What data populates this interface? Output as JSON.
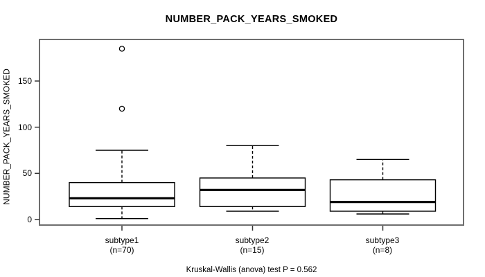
{
  "title": "NUMBER_PACK_YEARS_SMOKED",
  "colors": {
    "line": "#000000",
    "frame": "#6e6e6e",
    "background": "#ffffff",
    "text": "#000000"
  },
  "chart_data": {
    "type": "boxplot",
    "title": "NUMBER_PACK_YEARS_SMOKED",
    "ylabel": "NUMBER_PACK_YEARS_SMOKED",
    "xlabel": "",
    "ylim": [
      -6,
      195
    ],
    "yticks": [
      0,
      50,
      100,
      150
    ],
    "grid": false,
    "footnote": "Kruskal-Wallis (anova) test P = 0.562",
    "groups": [
      {
        "label": "subtype1",
        "n_label": "(n=70)",
        "n": 70,
        "whisker_low": 1,
        "q1": 14,
        "median": 23,
        "q3": 40,
        "whisker_high": 75,
        "outliers": [
          120,
          185
        ]
      },
      {
        "label": "subtype2",
        "n_label": "(n=15)",
        "n": 15,
        "whisker_low": 9,
        "q1": 14,
        "median": 32,
        "q3": 45,
        "whisker_high": 80,
        "outliers": []
      },
      {
        "label": "subtype3",
        "n_label": "(n=8)",
        "n": 8,
        "whisker_low": 6,
        "q1": 9,
        "median": 19,
        "q3": 43,
        "whisker_high": 65,
        "outliers": []
      }
    ]
  }
}
